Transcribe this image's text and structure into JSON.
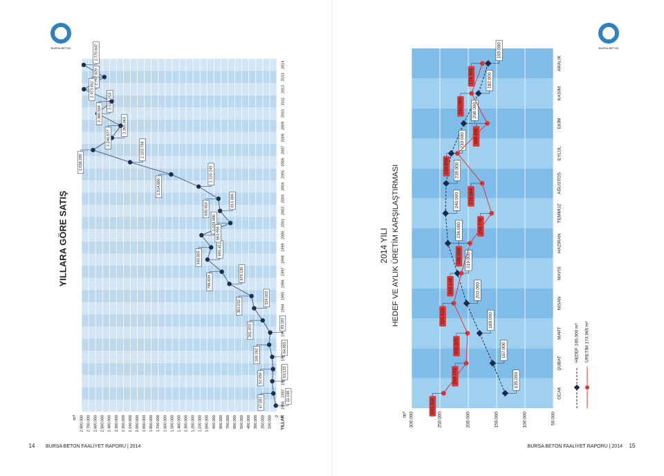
{
  "logo_text": "BURSA BETON",
  "footer": {
    "left_page": "14",
    "left_text": "BURSA BETON FAALİYET RAPORU | 2014",
    "right_text": "BURSA BETON FAALİYET RAPORU | 2014",
    "right_page": "15"
  },
  "chart_data": [
    {
      "type": "line",
      "title": "YILLARA GÖRE SATIŞ",
      "y_unit": "m³",
      "x_label": "YILLAR",
      "categories": [
        "1986",
        "1987",
        "1988",
        "1989",
        "1990",
        "1991",
        "1992",
        "1993",
        "1994",
        "1995",
        "1996",
        "1997",
        "1998",
        "1999",
        "2000",
        "2001",
        "2002",
        "2003",
        "2004",
        "2005",
        "2006",
        "2007",
        "2008",
        "2009",
        "2010",
        "2011",
        "2012",
        "2013",
        "2014"
      ],
      "values": [
        12190,
        47091,
        63133,
        52050,
        64901,
        108262,
        93187,
        201072,
        324023,
        361032,
        679130,
        786834,
        993451,
        940805,
        1078896,
        663956,
        813006,
        835659,
        1120245,
        1514606,
        2103798,
        2636289,
        2365063,
        2240577,
        2572253,
        2368564,
        2767829,
        2473462,
        2770047
      ],
      "value_labels": [
        "12.190",
        "47.091",
        "63.133",
        "52.050",
        "64.901",
        "108.262",
        "93.187",
        "201.072",
        "324.023",
        "361.032",
        "679.130",
        "786.834",
        "993.451",
        "940.805",
        "1.078.896",
        "663.956",
        "813.006",
        "835.659",
        "1.120.245",
        "1.514.606",
        "2.103.798",
        "2.636.289",
        "2.365.063",
        "2.240.577",
        "2.572.253",
        "2.368.564",
        "2.767.829",
        "2.473.462",
        "2.770.047"
      ],
      "color": "#4a6288",
      "marker": "circle",
      "marker_color": "#1c2f55",
      "ylim": [
        0,
        2800000
      ],
      "yticks": [
        0,
        {
          "value": 100000,
          "label": "100.000"
        },
        {
          "value": 200000,
          "label": "200.000"
        },
        {
          "value": 300000,
          "label": "300.000"
        },
        {
          "value": 400000,
          "label": "400.000"
        },
        {
          "value": 500000,
          "label": "500.000"
        },
        {
          "value": 600000,
          "label": "600.000"
        },
        {
          "value": 700000,
          "label": "700.000"
        },
        {
          "value": 800000,
          "label": "800.000"
        },
        {
          "value": 900000,
          "label": "900.000"
        },
        {
          "value": 1000000,
          "label": "1.000.000"
        },
        {
          "value": 1100000,
          "label": "1.100.000"
        },
        {
          "value": 1200000,
          "label": "1.200.000"
        },
        {
          "value": 1300000,
          "label": "1.300.000"
        },
        {
          "value": 1400000,
          "label": "1.400.000"
        },
        {
          "value": 1500000,
          "label": "1.500.000"
        },
        {
          "value": 1600000,
          "label": "1.600.000"
        },
        {
          "value": 1700000,
          "label": "1.700.000"
        },
        {
          "value": 1800000,
          "label": "1.800.000"
        },
        {
          "value": 1900000,
          "label": "1.900.000"
        },
        {
          "value": 2000000,
          "label": "2.000.000"
        },
        {
          "value": 2100000,
          "label": "2.100.000"
        },
        {
          "value": 2200000,
          "label": "2.200.000"
        },
        {
          "value": 2300000,
          "label": "2.300.000"
        },
        {
          "value": 2400000,
          "label": "2.400.000"
        },
        {
          "value": 2500000,
          "label": "2.500.000"
        },
        {
          "value": 2600000,
          "label": "2.600.000"
        },
        {
          "value": 2700000,
          "label": "2.700.000"
        },
        {
          "value": 2800000,
          "label": "2.800.000"
        }
      ],
      "grid": true
    },
    {
      "type": "line",
      "title": "2014 YILI",
      "subtitle": "HEDEF VE AYLIK ÜRETİM KARŞILAŞTIRMASI",
      "y_unit": "m³",
      "categories": [
        "OCAK",
        "ŞUBAT",
        "MART",
        "NİSAN",
        "MAYIS",
        "HAZİRAN",
        "TEMMUZ",
        "AĞUSTOS",
        "EYLÜL",
        "EKİM",
        "KASIM",
        "ARALIK"
      ],
      "series": [
        {
          "name": "HEDEF 165.000 m³",
          "color": "#1a2a4a",
          "dashed": true,
          "marker": "diamond",
          "values": [
            135000,
            157000,
            180000,
            203000,
            219000,
            236000,
            240000,
            239000,
            230000,
            208000,
            182000,
            165000
          ],
          "value_labels": [
            "135.000",
            "157.000",
            "180.000",
            "203.000",
            "219.000",
            "236.000",
            "240.000",
            "239.000",
            "230.000",
            "208.000",
            "182.000",
            "165.000"
          ]
        },
        {
          "name": "ÜRETİM 174.995 m³",
          "color": "#e03535",
          "dashed": false,
          "marker": "circle",
          "values": [
            243352,
            203706,
            201325,
            225516,
            212148,
            196998,
            158778,
            175564,
            218956,
            166458,
            194090,
            174995
          ],
          "value_labels": [
            "243.352",
            "203.706",
            "201.325",
            "225.516",
            "212.148",
            "196.998",
            "158.778",
            "175.564",
            "218.956",
            "166.458",
            "194.090",
            "174.995"
          ]
        }
      ],
      "ylim": [
        50000,
        300000
      ],
      "yticks": [
        {
          "value": 50000,
          "label": "50.000"
        },
        {
          "value": 100000,
          "label": "100.000"
        },
        {
          "value": 150000,
          "label": "150.000"
        },
        {
          "value": 200000,
          "label": "200.000"
        },
        {
          "value": 250000,
          "label": "250.000"
        },
        {
          "value": 300000,
          "label": "300.000"
        }
      ],
      "grid": true
    }
  ]
}
